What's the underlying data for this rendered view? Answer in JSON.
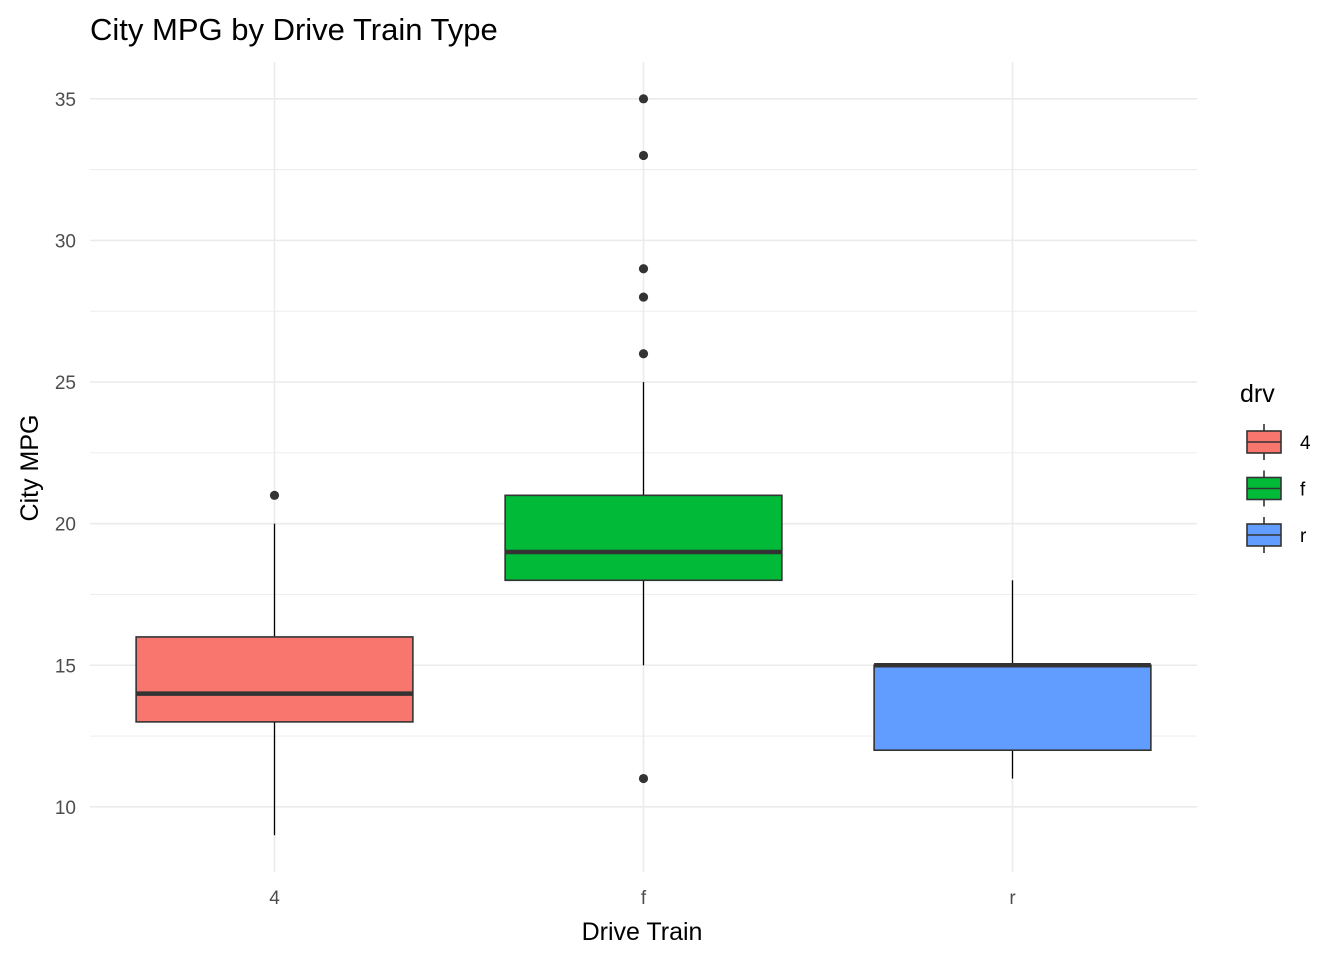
{
  "chart_data": {
    "type": "boxplot",
    "title": "City MPG by Drive Train Type",
    "xlabel": "Drive Train",
    "ylabel": "City MPG",
    "ylim": [
      7.7,
      36.3
    ],
    "y_ticks": [
      10,
      15,
      20,
      25,
      30,
      35
    ],
    "grid": true,
    "categories": [
      "4",
      "f",
      "r"
    ],
    "boxes": [
      {
        "category": "4",
        "min": 9,
        "q1": 13,
        "median": 14,
        "q3": 16,
        "max": 20,
        "outliers": [
          21
        ],
        "color": "#F8766D"
      },
      {
        "category": "f",
        "min": 15,
        "q1": 18,
        "median": 19,
        "q3": 21,
        "max": 25,
        "outliers": [
          26,
          28,
          29,
          33,
          35,
          11
        ],
        "color": "#00BA38"
      },
      {
        "category": "r",
        "min": 11,
        "q1": 12,
        "median": 15,
        "q3": 15,
        "max": 18,
        "outliers": [],
        "color": "#619CFF"
      }
    ],
    "legend": {
      "title": "drv",
      "position": "right",
      "items": [
        {
          "label": "4",
          "color": "#F8766D"
        },
        {
          "label": "f",
          "color": "#00BA38"
        },
        {
          "label": "r",
          "color": "#619CFF"
        }
      ]
    }
  }
}
